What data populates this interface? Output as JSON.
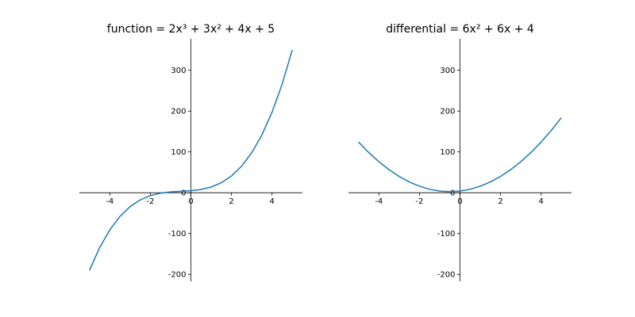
{
  "chart_data": [
    {
      "type": "line",
      "title": "function = 2x³ + 3x² + 4x + 5",
      "x": [
        -5,
        -4.5,
        -4,
        -3.5,
        -3,
        -2.5,
        -2,
        -1.5,
        -1,
        -0.5,
        0,
        0.5,
        1,
        1.5,
        2,
        2.5,
        3,
        3.5,
        4,
        4.5,
        5
      ],
      "values": [
        -190,
        -134.5,
        -91,
        -58,
        -34,
        -17.5,
        -7,
        -1,
        2,
        3.5,
        5,
        8,
        14,
        24.5,
        41,
        65,
        98,
        141.5,
        197,
        266,
        350
      ],
      "color": "#1f77b4",
      "xlim": [
        -5.5,
        5.5
      ],
      "xticks": [
        -4,
        -2,
        0,
        2,
        4
      ],
      "ylim": [
        -217,
        377
      ],
      "yticks": [
        -200,
        -100,
        0,
        100,
        200,
        300
      ]
    },
    {
      "type": "line",
      "title": "differential = 6x² + 6x + 4",
      "x": [
        -5,
        -4.5,
        -4,
        -3.5,
        -3,
        -2.5,
        -2,
        -1.5,
        -1,
        -0.5,
        0,
        0.5,
        1,
        1.5,
        2,
        2.5,
        3,
        3.5,
        4,
        4.5,
        5
      ],
      "values": [
        124,
        98.5,
        76,
        56.5,
        40,
        26.5,
        16,
        8.5,
        4,
        2.5,
        4,
        8.5,
        16,
        26.5,
        40,
        56.5,
        76,
        98.5,
        124,
        152.5,
        184
      ],
      "color": "#1f77b4",
      "xlim": [
        -5.5,
        5.5
      ],
      "xticks": [
        -4,
        -2,
        0,
        2,
        4
      ],
      "ylim": [
        -217,
        377
      ],
      "yticks": [
        -200,
        -100,
        0,
        100,
        200,
        300
      ]
    }
  ]
}
